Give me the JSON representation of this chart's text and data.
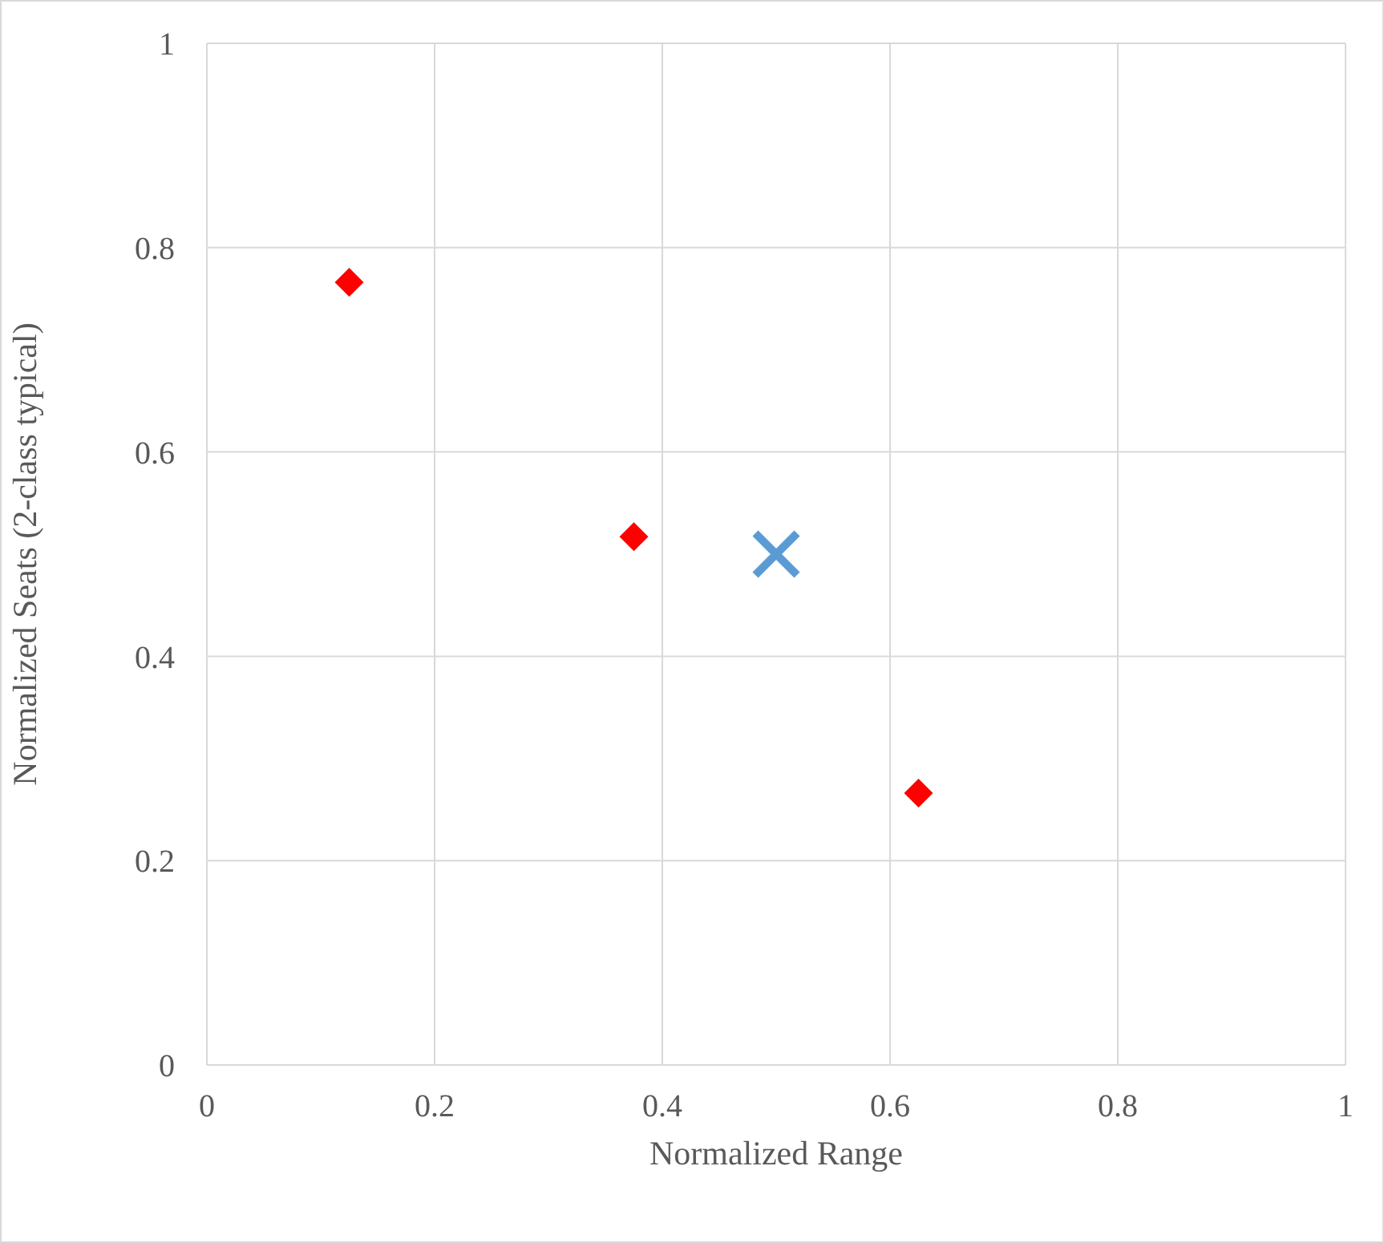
{
  "chart_data": {
    "type": "scatter",
    "xlabel": "Normalized Range",
    "ylabel": "Normalized Seats (2-class typical)",
    "xlim": [
      0,
      1
    ],
    "xticks": [
      0,
      0.2,
      0.4,
      0.6,
      0.8,
      1
    ],
    "ylim": [
      0,
      1
    ],
    "yticks": [
      0,
      0.2,
      0.4,
      0.6,
      0.8,
      1
    ],
    "grid": true,
    "legend": false,
    "series": [
      {
        "color": "#ff0000",
        "marker": "diamond",
        "x": [
          0.125,
          0.375,
          0.625
        ],
        "values": [
          0.766,
          0.517,
          0.266
        ]
      },
      {
        "color": "#5b9bd5",
        "marker": "cross",
        "x": [
          0.5
        ],
        "values": [
          0.5
        ]
      }
    ]
  }
}
